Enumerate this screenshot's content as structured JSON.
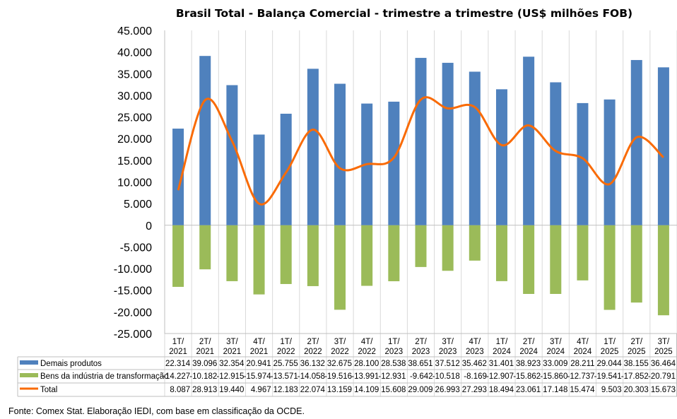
{
  "chart_data": {
    "type": "bar",
    "title": "Brasil Total - Balança Comercial - trimestre a trimestre (US$ milhões FOB)",
    "categories": [
      "1T/ 2021",
      "2T/ 2021",
      "3T/ 2021",
      "4T/ 2021",
      "1T/ 2022",
      "2T/ 2022",
      "3T/ 2022",
      "4T/ 2022",
      "1T/ 2023",
      "2T/ 2023",
      "3T/ 2023",
      "4T/ 2023",
      "1T/ 2024",
      "2T/ 2024",
      "3T/ 2024",
      "4T/ 2024",
      "1T/ 2025",
      "2T/ 2025",
      "3T/ 2025"
    ],
    "ylim": [
      -25000,
      45000
    ],
    "yticks": [
      45000,
      40000,
      35000,
      30000,
      25000,
      20000,
      15000,
      10000,
      5000,
      0,
      -5000,
      -10000,
      -15000,
      -20000,
      -25000
    ],
    "ytick_labels": [
      "45.000",
      "40.000",
      "35.000",
      "30.000",
      "25.000",
      "20.000",
      "15.000",
      "10.000",
      "5.000",
      "0",
      "-5.000",
      "-10.000",
      "-15.000",
      "-20.000",
      "-25.000"
    ],
    "grid": "vertical category lines",
    "legend": "data table below chart",
    "series": [
      {
        "name": "Demais produtos",
        "kind": "bar",
        "color": "#4F81BD",
        "values": [
          22314,
          39096,
          32354,
          20941,
          25755,
          36132,
          32675,
          28100,
          28538,
          38651,
          37512,
          35462,
          31401,
          38923,
          33009,
          28211,
          29044,
          38155,
          36464
        ],
        "labels": [
          "22.314",
          "39.096",
          "32.354",
          "20.941",
          "25.755",
          "36.132",
          "32.675",
          "28.100",
          "28.538",
          "38.651",
          "37.512",
          "35.462",
          "31.401",
          "38.923",
          "33.009",
          "28.211",
          "29.044",
          "38.155",
          "36.464"
        ]
      },
      {
        "name": "Bens da indústria de transformação",
        "kind": "bar",
        "color": "#9BBB59",
        "values": [
          -14227,
          -10182,
          -12915,
          -15974,
          -13571,
          -14058,
          -19516,
          -13991,
          -12931,
          -9642,
          -10518,
          -8169,
          -12907,
          -15862,
          -15860,
          -12737,
          -19541,
          -17852,
          -20791
        ],
        "labels": [
          "-14.227",
          "-10.182",
          "-12.915",
          "-15.974",
          "-13.571",
          "-14.058",
          "-19.516",
          "-13.991",
          "-12.931",
          "-9.642",
          "-10.518",
          "-8.169",
          "-12.907",
          "-15.862",
          "-15.860",
          "-12.737",
          "-19.541",
          "-17.852",
          "-20.791"
        ]
      },
      {
        "name": "Total",
        "kind": "line",
        "color": "#F96B07",
        "values": [
          8087,
          28913,
          19440,
          4967,
          12183,
          22074,
          13159,
          14109,
          15608,
          29009,
          26993,
          27293,
          18494,
          23061,
          17148,
          15474,
          9503,
          20303,
          15673
        ],
        "labels": [
          "8.087",
          "28.913",
          "19.440",
          "4.967",
          "12.183",
          "22.074",
          "13.159",
          "14.109",
          "15.608",
          "29.009",
          "26.993",
          "27.293",
          "18.494",
          "23.061",
          "17.148",
          "15.474",
          "9.503",
          "20.303",
          "15.673"
        ]
      }
    ]
  },
  "source": "Fonte: Comex Stat. Elaboração IEDI, com base em classificação da OCDE."
}
